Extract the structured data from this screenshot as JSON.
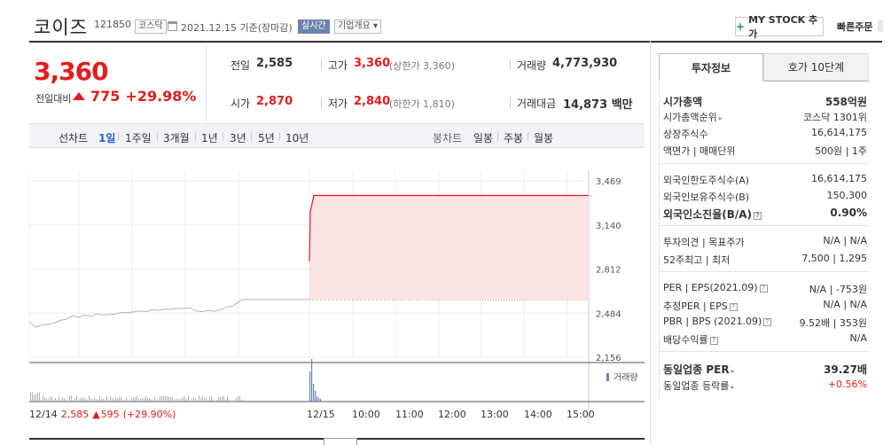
{
  "header": {
    "stock_name": "코이즈",
    "stock_code": "121850",
    "market_badge": "코스닥",
    "date_text": "2021.12.15 기준(장마감)",
    "realtime_badge": "실시간",
    "company_badge": "기업개요",
    "mystock_label": "MY STOCK 추가",
    "fast_order_label": "빠른주문"
  },
  "price": {
    "current": "3,360",
    "change_label": "전일대비",
    "change": "775",
    "change_rate": "+29.98%"
  },
  "summary": {
    "prev_close_label": "전일",
    "prev_close": "2,585",
    "high_label": "고가",
    "high": "3,360",
    "high_note": "(상한가 3,360)",
    "volume_label": "거래량",
    "volume": "4,773,930",
    "open_label": "시가",
    "open": "2,870",
    "low_label": "저가",
    "low": "2,840",
    "low_note": "(하한가 1,810)",
    "amount_label": "거래대금",
    "amount": "14,873 백만"
  },
  "period_bar": {
    "line_chart_label": "선차트",
    "line_periods": [
      "1일",
      "1주일",
      "3개월",
      "1년",
      "3년",
      "5년",
      "10년"
    ],
    "selected": "1일",
    "candle_label": "봉차트",
    "candle_periods": [
      "일봉",
      "주봉",
      "월봉"
    ]
  },
  "right_panel": {
    "tabs": [
      "투자정보",
      "호가 10단계"
    ],
    "active_tab": "투자정보",
    "rows": [
      {
        "k": "시가총액",
        "v": "558억원",
        "bold": true
      },
      {
        "k": "시가총액순위",
        "v": "코스닥 1301위",
        "arrow": true
      },
      {
        "k": "상장주식수",
        "v": "16,614,175"
      },
      {
        "k": "액면가 | 매매단위",
        "v": "500원 | 1주"
      },
      {
        "k": "외국인한도주식수(A)",
        "v": "16,614,175"
      },
      {
        "k": "외국인보유주식수(B)",
        "v": "150,300"
      },
      {
        "k": "외국인소진율(B/A)",
        "v": "0.90%",
        "bold": true,
        "help": true
      },
      {
        "k": "투자의견 | 목표주가",
        "v": "N/A | N/A"
      },
      {
        "k": "52주최고 | 최저",
        "v": "7,500 | 1,295"
      },
      {
        "k": "PER | EPS(2021.09)",
        "v": "N/A | -753원",
        "help": true
      },
      {
        "k": "추정PER | EPS",
        "v": "N/A | N/A",
        "help": true
      },
      {
        "k": "PBR | BPS (2021.09)",
        "v": "9.52배 | 353원",
        "help": true
      },
      {
        "k": "배당수익률",
        "v": "N/A",
        "help": true
      },
      {
        "k": "동일업종 PER",
        "v": "39.27배",
        "bold": true,
        "arrow": true
      },
      {
        "k": "동일업종 등락률",
        "v": "+0.56%",
        "arrow": true,
        "red": true
      }
    ]
  },
  "chart_data": {
    "type": "line",
    "y_ticks": [
      "3,469",
      "3,140",
      "2,812",
      "2,484",
      "2,156"
    ],
    "ylim": [
      2156,
      3469
    ],
    "volume_label": "거래량",
    "x_ticks": [
      "12/14",
      "12/15",
      "10:00",
      "11:00",
      "12:00",
      "13:00",
      "14:00",
      "15:00"
    ],
    "prev_day_label": "12/14",
    "prev_day_close": "2,585",
    "prev_day_change": "595",
    "prev_day_rate": "(+29.90%)",
    "prev_day_series": [
      2420,
      2380,
      2395,
      2400,
      2410,
      2430,
      2440,
      2465,
      2455,
      2470,
      2460,
      2480,
      2470,
      2475,
      2478,
      2490,
      2488,
      2495,
      2500,
      2495,
      2510,
      2505,
      2515,
      2512,
      2520,
      2518,
      2525,
      2500,
      2495,
      2505,
      2498,
      2510,
      2530,
      2540,
      2585,
      2585
    ],
    "today_series": [
      2870,
      3240,
      3360,
      3360
    ],
    "colors": {
      "up": "#e01e1e",
      "fill": "#fbe3e3",
      "prev": "#b5b5b5",
      "ref": "#555555"
    }
  }
}
